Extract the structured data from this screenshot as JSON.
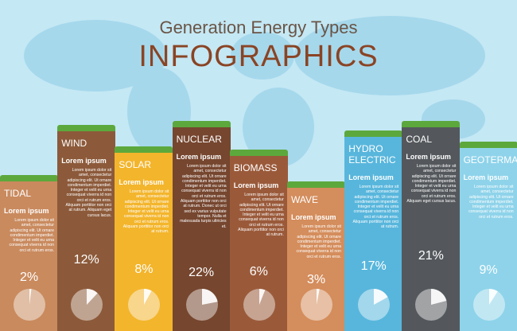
{
  "header": {
    "subtitle": "Generation Energy Types",
    "title": "INFOGRAPHICS"
  },
  "columns": [
    {
      "name": "TIDAL",
      "heading": "Lorem ipsum",
      "text": "Lorem ipsum dolor sit amet, consectetur adipiscing elit. Ut ornare condimentum imperdiet. Integer et velit eu urna consequat viverra id non orci et rutrum eros.",
      "value": 2,
      "value_label": "2%"
    },
    {
      "name": "WIND",
      "heading": "Lorem ipsum",
      "text": "Lorem ipsum dolor sit amet, consectetur adipiscing elit. Ut ornare condimentum imperdiet. Integer et velit eu urna consequat viverra id non orci et rutrum eros. Aliquam porttitor non orci at rutrum. Aliquam eget cursus lacus.",
      "value": 12,
      "value_label": "12%"
    },
    {
      "name": "SOLAR",
      "heading": "Lorem ipsum",
      "text": "Lorem ipsum dolor sit amet, consectetur adipiscing elit. Ut ornare condimentum imperdiet. Integer et velit eu urna consequat viverra id non orci et rutrum eros. Aliquam porttitor non orci at rutrum.",
      "value": 8,
      "value_label": "8%"
    },
    {
      "name": "NUCLEAR",
      "heading": "Lorem ipsum",
      "text": "Lorem ipsum dolor sit amet, consectetur adipiscing elit. Ut ornare condimentum imperdiet. Integer et velit eu urna consequat viverra id non orci et rutrum eros. Aliquam porttitor non orci at rutrum. Donec ut orci sed ex varius vulputate tempor. Nulla et malesuada turpis ultricies et.",
      "value": 22,
      "value_label": "22%"
    },
    {
      "name": "BIOMASS",
      "heading": "Lorem ipsum",
      "text": "Lorem ipsum dolor sit amet, consectetur adipiscing elit. Ut ornare condimentum imperdiet. Integer et velit eu urna consequat viverra id non orci et rutrum eros. Aliquam porttitor non orci at rutrum.",
      "value": 6,
      "value_label": "6%"
    },
    {
      "name": "WAVE",
      "heading": "Lorem ipsum",
      "text": "Lorem ipsum dolor sit amet, consectetur adipiscing elit. Ut ornare condimentum imperdiet. Integer et velit eu urna consequat viverra id non orci et rutrum eros.",
      "value": 3,
      "value_label": "3%"
    },
    {
      "name": "HYDRO ELECTRIC",
      "heading": "Lorem ipsum",
      "text": "Lorem ipsum dolor sit amet, consectetur adipiscing elit. Ut ornare condimentum imperdiet. Integer et velit eu urna consequat viverra id non orci et rutrum eros. Aliquam porttitor non orci at rutrum.",
      "value": 17,
      "value_label": "17%"
    },
    {
      "name": "COAL",
      "heading": "Lorem ipsum",
      "text": "Lorem ipsum dolor sit amet, consectetur adipiscing elit. Ut ornare condimentum imperdiet. Integer et velit eu urna consequat viverra id non orci et rutrum eros. Aliquam eget cursus lacus.",
      "value": 21,
      "value_label": "21%"
    },
    {
      "name": "GEOTERMAL",
      "heading": "Lorem ipsum",
      "text": "Lorem ipsum dolor sit amet, consectetur adipiscing elit. Ut ornare condimentum imperdiet. Integer et velit eu urna consequat viverra id non orci et rutrum eros.",
      "value": 9,
      "value_label": "9%"
    }
  ]
}
